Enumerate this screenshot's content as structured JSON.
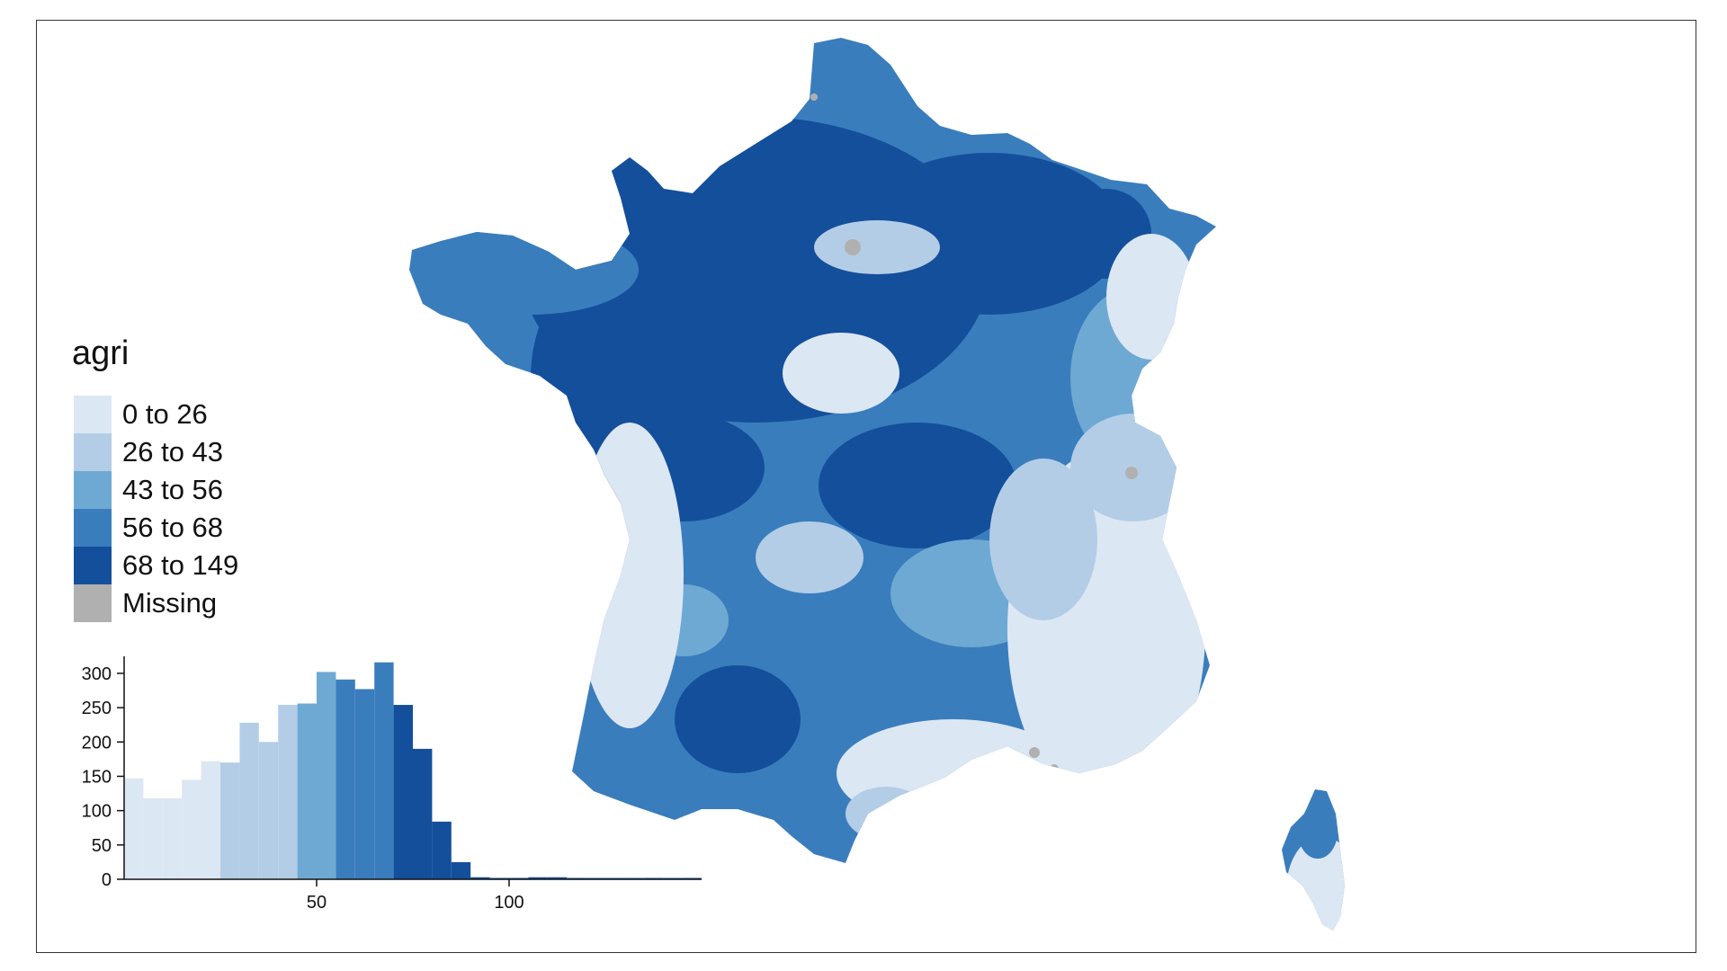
{
  "legend": {
    "title": "agri",
    "items": [
      {
        "label": "0 to 26",
        "color": "#dce7f4"
      },
      {
        "label": "26 to 43",
        "color": "#b3cde6"
      },
      {
        "label": "43 to 56",
        "color": "#6ea9d3"
      },
      {
        "label": "56 to 68",
        "color": "#3a7dbd"
      },
      {
        "label": "68 to 149",
        "color": "#144f9c"
      },
      {
        "label": "Missing",
        "color": "#b0b0b0"
      }
    ]
  },
  "chart_data": {
    "type": "bar",
    "title": "",
    "xlabel": "",
    "ylabel": "",
    "x_ticks": [
      50,
      100
    ],
    "y_ticks": [
      0,
      50,
      100,
      150,
      200,
      250,
      300
    ],
    "xlim": [
      0,
      150
    ],
    "ylim": [
      0,
      330
    ],
    "bin_width": 5,
    "bins": [
      {
        "x": 0,
        "value": 147,
        "class": 0
      },
      {
        "x": 5,
        "value": 118,
        "class": 0
      },
      {
        "x": 10,
        "value": 118,
        "class": 0
      },
      {
        "x": 15,
        "value": 145,
        "class": 0
      },
      {
        "x": 20,
        "value": 172,
        "class": 0
      },
      {
        "x": 25,
        "value": 170,
        "class": 1
      },
      {
        "x": 30,
        "value": 228,
        "class": 1
      },
      {
        "x": 35,
        "value": 200,
        "class": 1
      },
      {
        "x": 40,
        "value": 254,
        "class": 1
      },
      {
        "x": 45,
        "value": 256,
        "class": 2
      },
      {
        "x": 50,
        "value": 302,
        "class": 2
      },
      {
        "x": 55,
        "value": 291,
        "class": 3
      },
      {
        "x": 60,
        "value": 277,
        "class": 3
      },
      {
        "x": 65,
        "value": 316,
        "class": 3
      },
      {
        "x": 70,
        "value": 254,
        "class": 4
      },
      {
        "x": 75,
        "value": 190,
        "class": 4
      },
      {
        "x": 80,
        "value": 84,
        "class": 4
      },
      {
        "x": 85,
        "value": 25,
        "class": 4
      },
      {
        "x": 90,
        "value": 3,
        "class": 4
      },
      {
        "x": 95,
        "value": 2,
        "class": 4
      },
      {
        "x": 100,
        "value": 2,
        "class": 4
      },
      {
        "x": 105,
        "value": 3,
        "class": 4
      },
      {
        "x": 110,
        "value": 3,
        "class": 4
      },
      {
        "x": 115,
        "value": 2,
        "class": 4
      },
      {
        "x": 120,
        "value": 1,
        "class": 4
      },
      {
        "x": 125,
        "value": 1,
        "class": 4
      },
      {
        "x": 130,
        "value": 1,
        "class": 4
      },
      {
        "x": 135,
        "value": 2,
        "class": 4
      },
      {
        "x": 140,
        "value": 1,
        "class": 4
      },
      {
        "x": 145,
        "value": 2,
        "class": 4
      }
    ]
  }
}
